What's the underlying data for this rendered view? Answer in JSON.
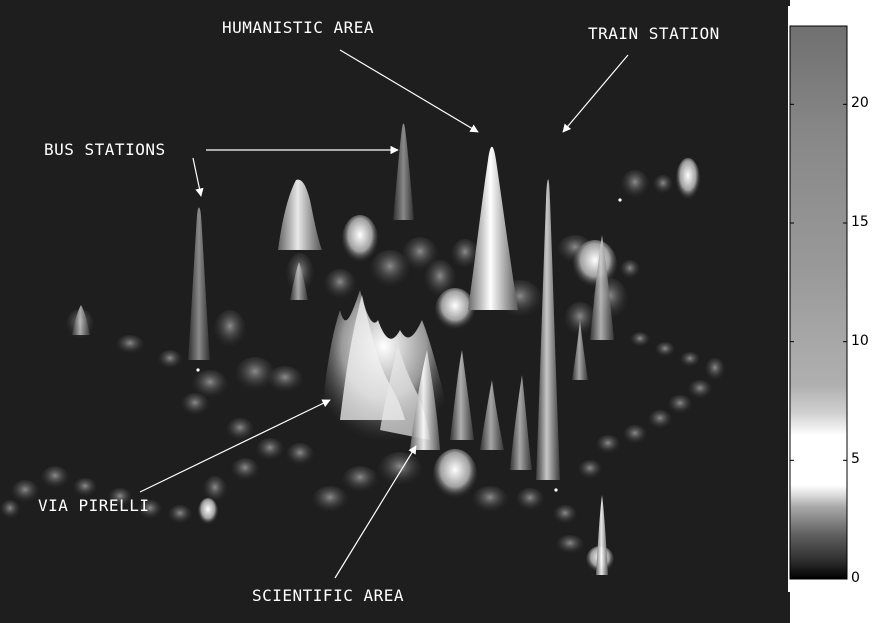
{
  "annotations": {
    "humanistic_area": "HUMANISTIC AREA",
    "train_station": "TRAIN STATION",
    "bus_stations": "BUS STATIONS",
    "via_pirelli": "VIA PIRELLI",
    "scientific_area": "SCIENTIFIC AREA"
  },
  "colorbar": {
    "ticks": [
      {
        "value": 0,
        "label": "0"
      },
      {
        "value": 5,
        "label": "5"
      },
      {
        "value": 10,
        "label": "10"
      },
      {
        "value": 15,
        "label": "15"
      },
      {
        "value": 20,
        "label": "20"
      }
    ],
    "min": 0,
    "max": 23.3
  },
  "colors": {
    "background": "#1e1e1e",
    "annotation": "#ffffff",
    "colorbar_frame": "#000000"
  }
}
